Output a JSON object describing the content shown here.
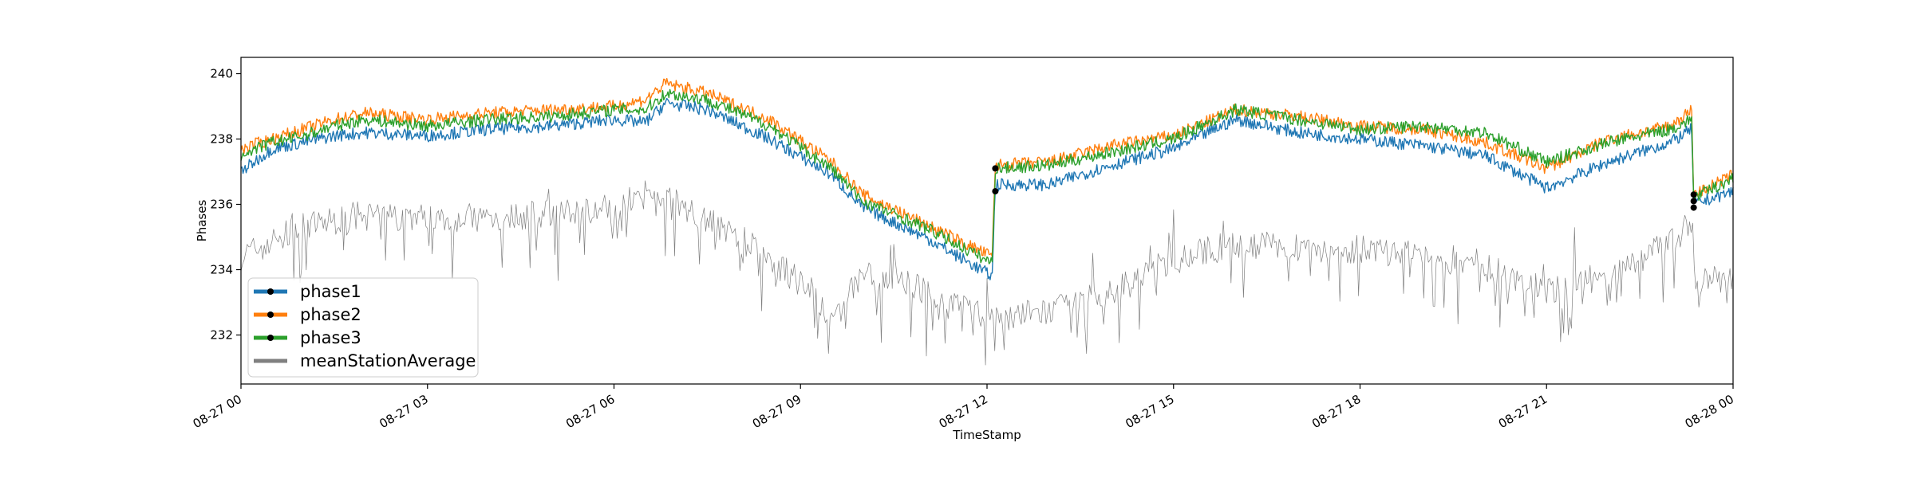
{
  "chart_data": {
    "type": "line",
    "title": "",
    "xlabel": "TimeStamp",
    "ylabel": "Phases",
    "xlim": [
      "08-27 00:00",
      "08-28 00:00"
    ],
    "ylim": [
      230.5,
      240.5
    ],
    "grid": false,
    "legend": {
      "placement": "lower-left"
    },
    "x_ticks": [
      "08-27 00",
      "08-27 03",
      "08-27 06",
      "08-27 09",
      "08-27 12",
      "08-27 15",
      "08-27 18",
      "08-27 21",
      "08-28 00"
    ],
    "y_ticks": [
      232,
      234,
      236,
      238,
      240
    ],
    "series": [
      {
        "name": "phase1",
        "color": "#1f77b4",
        "points": [
          [
            "08-27 00:00",
            237.0
          ],
          [
            "08-27 00:30",
            237.7
          ],
          [
            "08-27 01:00",
            237.9
          ],
          [
            "08-27 01:30",
            238.1
          ],
          [
            "08-27 02:00",
            238.2
          ],
          [
            "08-27 03:00",
            238.1
          ],
          [
            "08-27 04:00",
            238.3
          ],
          [
            "08-27 05:00",
            238.4
          ],
          [
            "08-27 06:00",
            238.6
          ],
          [
            "08-27 06:30",
            238.5
          ],
          [
            "08-27 06:50",
            239.1
          ],
          [
            "08-27 07:30",
            238.9
          ],
          [
            "08-27 08:30",
            238.0
          ],
          [
            "08-27 09:30",
            236.9
          ],
          [
            "08-27 10:00",
            235.9
          ],
          [
            "08-27 11:00",
            235.0
          ],
          [
            "08-27 12:05",
            233.8
          ],
          [
            "08-27 12:08",
            236.6
          ],
          [
            "08-27 13:00",
            236.6
          ],
          [
            "08-27 14:00",
            237.2
          ],
          [
            "08-27 15:00",
            237.7
          ],
          [
            "08-27 16:00",
            238.6
          ],
          [
            "08-27 17:00",
            238.2
          ],
          [
            "08-27 18:00",
            238.0
          ],
          [
            "08-27 19:00",
            237.8
          ],
          [
            "08-27 20:00",
            237.5
          ],
          [
            "08-27 21:00",
            236.5
          ],
          [
            "08-27 22:00",
            237.3
          ],
          [
            "08-27 23:00",
            237.9
          ],
          [
            "08-27 23:20",
            238.3
          ],
          [
            "08-27 23:22",
            236.0
          ],
          [
            "08-28 00:00",
            236.4
          ]
        ]
      },
      {
        "name": "phase2",
        "color": "#ff7f0e",
        "points": [
          [
            "08-27 00:00",
            237.7
          ],
          [
            "08-27 00:30",
            238.0
          ],
          [
            "08-27 01:00",
            238.3
          ],
          [
            "08-27 01:30",
            238.6
          ],
          [
            "08-27 02:00",
            238.8
          ],
          [
            "08-27 03:00",
            238.6
          ],
          [
            "08-27 04:00",
            238.8
          ],
          [
            "08-27 05:00",
            238.9
          ],
          [
            "08-27 06:00",
            239.0
          ],
          [
            "08-27 06:30",
            239.2
          ],
          [
            "08-27 06:50",
            239.7
          ],
          [
            "08-27 07:30",
            239.4
          ],
          [
            "08-27 08:30",
            238.6
          ],
          [
            "08-27 09:30",
            237.3
          ],
          [
            "08-27 10:00",
            236.3
          ],
          [
            "08-27 11:00",
            235.4
          ],
          [
            "08-27 12:05",
            234.4
          ],
          [
            "08-27 12:08",
            237.2
          ],
          [
            "08-27 13:00",
            237.3
          ],
          [
            "08-27 14:00",
            237.8
          ],
          [
            "08-27 15:00",
            238.1
          ],
          [
            "08-27 16:00",
            238.9
          ],
          [
            "08-27 17:00",
            238.7
          ],
          [
            "08-27 18:00",
            238.4
          ],
          [
            "08-27 19:00",
            238.3
          ],
          [
            "08-27 20:00",
            237.9
          ],
          [
            "08-27 21:00",
            237.1
          ],
          [
            "08-27 22:00",
            238.0
          ],
          [
            "08-27 23:00",
            238.4
          ],
          [
            "08-27 23:20",
            238.9
          ],
          [
            "08-27 23:22",
            236.3
          ],
          [
            "08-28 00:00",
            236.9
          ]
        ]
      },
      {
        "name": "phase3",
        "color": "#2ca02c",
        "points": [
          [
            "08-27 00:00",
            237.5
          ],
          [
            "08-27 00:30",
            237.9
          ],
          [
            "08-27 01:00",
            238.1
          ],
          [
            "08-27 01:30",
            238.4
          ],
          [
            "08-27 02:00",
            238.6
          ],
          [
            "08-27 03:00",
            238.4
          ],
          [
            "08-27 04:00",
            238.6
          ],
          [
            "08-27 05:00",
            238.7
          ],
          [
            "08-27 06:00",
            238.9
          ],
          [
            "08-27 06:30",
            238.9
          ],
          [
            "08-27 06:50",
            239.4
          ],
          [
            "08-27 07:30",
            239.2
          ],
          [
            "08-27 08:30",
            238.4
          ],
          [
            "08-27 09:30",
            237.1
          ],
          [
            "08-27 10:00",
            236.1
          ],
          [
            "08-27 11:00",
            235.3
          ],
          [
            "08-27 12:05",
            234.2
          ],
          [
            "08-27 12:08",
            237.1
          ],
          [
            "08-27 13:00",
            237.2
          ],
          [
            "08-27 14:00",
            237.6
          ],
          [
            "08-27 15:00",
            238.0
          ],
          [
            "08-27 16:00",
            238.9
          ],
          [
            "08-27 17:00",
            238.6
          ],
          [
            "08-27 18:00",
            238.3
          ],
          [
            "08-27 19:00",
            238.4
          ],
          [
            "08-27 20:00",
            238.2
          ],
          [
            "08-27 21:00",
            237.3
          ],
          [
            "08-27 22:00",
            237.9
          ],
          [
            "08-27 23:00",
            238.3
          ],
          [
            "08-27 23:20",
            238.6
          ],
          [
            "08-27 23:22",
            236.2
          ],
          [
            "08-28 00:00",
            236.8
          ]
        ]
      },
      {
        "name": "meanStationAverage",
        "color": "#808080",
        "points": [
          [
            "08-27 00:00",
            234.4
          ],
          [
            "08-27 01:00",
            235.3
          ],
          [
            "08-27 02:00",
            235.7
          ],
          [
            "08-27 03:00",
            235.6
          ],
          [
            "08-27 04:00",
            235.6
          ],
          [
            "08-27 05:00",
            235.7
          ],
          [
            "08-27 06:00",
            235.9
          ],
          [
            "08-27 06:30",
            236.3
          ],
          [
            "08-27 07:00",
            236.1
          ],
          [
            "08-27 08:00",
            235.0
          ],
          [
            "08-27 09:00",
            233.6
          ],
          [
            "08-27 09:30",
            232.4
          ],
          [
            "08-27 10:00",
            233.9
          ],
          [
            "08-27 11:00",
            233.4
          ],
          [
            "08-27 12:00",
            232.5
          ],
          [
            "08-27 13:00",
            232.7
          ],
          [
            "08-27 14:00",
            233.3
          ],
          [
            "08-27 15:00",
            234.3
          ],
          [
            "08-27 16:00",
            234.8
          ],
          [
            "08-27 17:00",
            234.7
          ],
          [
            "08-27 18:00",
            234.6
          ],
          [
            "08-27 19:00",
            234.4
          ],
          [
            "08-27 20:00",
            234.2
          ],
          [
            "08-27 21:00",
            233.3
          ],
          [
            "08-27 22:00",
            233.9
          ],
          [
            "08-27 23:00",
            234.8
          ],
          [
            "08-27 23:20",
            235.5
          ],
          [
            "08-27 23:24",
            233.7
          ],
          [
            "08-28 00:00",
            233.6
          ]
        ]
      }
    ],
    "markers": [
      {
        "series": "phase1",
        "x": "08-27 12:08",
        "y": 236.4
      },
      {
        "series": "phase3",
        "x": "08-27 12:08",
        "y": 237.1
      },
      {
        "series": "phase1",
        "x": "08-27 23:22",
        "y": 235.9
      },
      {
        "series": "phase2",
        "x": "08-27 23:22",
        "y": 236.1
      },
      {
        "series": "phase3",
        "x": "08-27 23:22",
        "y": 236.3
      }
    ]
  }
}
